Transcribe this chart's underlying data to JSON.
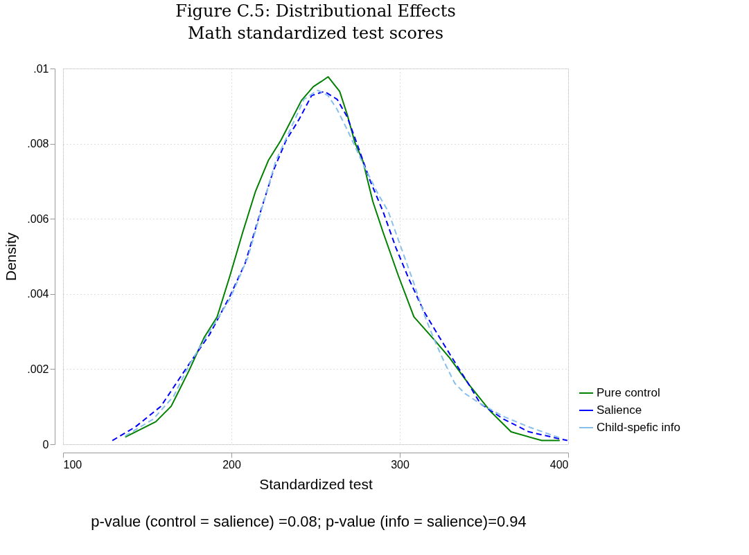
{
  "chart_data": {
    "type": "line",
    "title": "Figure C.5: Distributional Effects",
    "subtitle": "Math standardized test scores",
    "xlabel": "Standardized test",
    "ylabel": "Density",
    "annotations": [
      "p-value (control = salience) =0.08; p-value (info = salience)=0.94"
    ],
    "xlim": [
      100,
      400
    ],
    "xticks": [
      100,
      200,
      300,
      400
    ],
    "ylim": [
      0,
      0.01
    ],
    "yticks": [
      {
        "value": 0,
        "label": "0"
      },
      {
        "value": 0.002,
        "label": ".002"
      },
      {
        "value": 0.004,
        "label": ".004"
      },
      {
        "value": 0.006,
        "label": ".006"
      },
      {
        "value": 0.008,
        "label": ".008"
      },
      {
        "value": 0.01,
        "label": ".01"
      }
    ],
    "grid": true,
    "legend": "bottom right",
    "marker": "none",
    "series": [
      {
        "name": "Pure control",
        "color": "#008000",
        "line_style": "solid",
        "x": [
          136.9,
          155.1,
          164.2,
          174.8,
          183.9,
          191.5,
          199.1,
          206.7,
          214.3,
          221.9,
          229.4,
          241.6,
          248.7,
          253.6,
          257.4,
          264.3,
          268.8,
          273.4,
          278,
          284,
          290.1,
          299.2,
          308.4,
          320.5,
          329.6,
          341.8,
          354,
          366.1,
          384.3,
          395
        ],
        "values": [
          0.00019,
          0.0006,
          0.00101,
          0.00196,
          0.00285,
          0.00339,
          0.00448,
          0.00564,
          0.00673,
          0.00755,
          0.00809,
          0.00915,
          0.00952,
          0.00966,
          0.00978,
          0.00939,
          0.00877,
          0.00802,
          0.00755,
          0.00646,
          0.00564,
          0.00448,
          0.00339,
          0.00278,
          0.0023,
          0.00155,
          0.00087,
          0.00033,
          0.0001,
          0.0001
        ]
      },
      {
        "name": "Salience",
        "color": "#0000ff",
        "line_style": "dashed",
        "x": [
          129.3,
          142.9,
          158.1,
          174.8,
          187,
          199.1,
          208.2,
          217.3,
          224.9,
          232.5,
          240.1,
          247.6,
          255.2,
          262.8,
          268.8,
          274.9,
          282.5,
          290.1,
          297.7,
          305.3,
          314.4,
          323.5,
          331.1,
          338.7,
          347.9,
          361.6,
          376.7,
          399.5
        ],
        "values": [
          0.0001,
          0.00046,
          0.00101,
          0.00213,
          0.00292,
          0.00394,
          0.00482,
          0.00619,
          0.00728,
          0.00809,
          0.00864,
          0.00928,
          0.00939,
          0.00918,
          0.00871,
          0.00796,
          0.007,
          0.00619,
          0.00523,
          0.00441,
          0.00353,
          0.00285,
          0.0023,
          0.00176,
          0.00108,
          0.00067,
          0.00033,
          0.0001
        ]
      },
      {
        "name": "Child-spefic info",
        "color": "#87bfea",
        "line_style": "dashed",
        "x": [
          136.9,
          153.6,
          165.7,
          174.8,
          183.9,
          199.1,
          209.7,
          218.8,
          226.4,
          235.5,
          243.1,
          251.3,
          257.4,
          262.8,
          268.8,
          278,
          287.1,
          293.2,
          300.8,
          308.4,
          314.4,
          320.5,
          326.6,
          332.7,
          338.7,
          347.9,
          361.6,
          376.7,
          395.7
        ],
        "values": [
          0.00022,
          0.00067,
          0.00128,
          0.0021,
          0.00278,
          0.00387,
          0.00496,
          0.00639,
          0.00755,
          0.00843,
          0.00918,
          0.00942,
          0.00928,
          0.00891,
          0.00837,
          0.00748,
          0.00666,
          0.00619,
          0.00523,
          0.00428,
          0.00346,
          0.00278,
          0.00217,
          0.00162,
          0.00135,
          0.00108,
          0.00074,
          0.00046,
          0.00016
        ]
      }
    ]
  }
}
